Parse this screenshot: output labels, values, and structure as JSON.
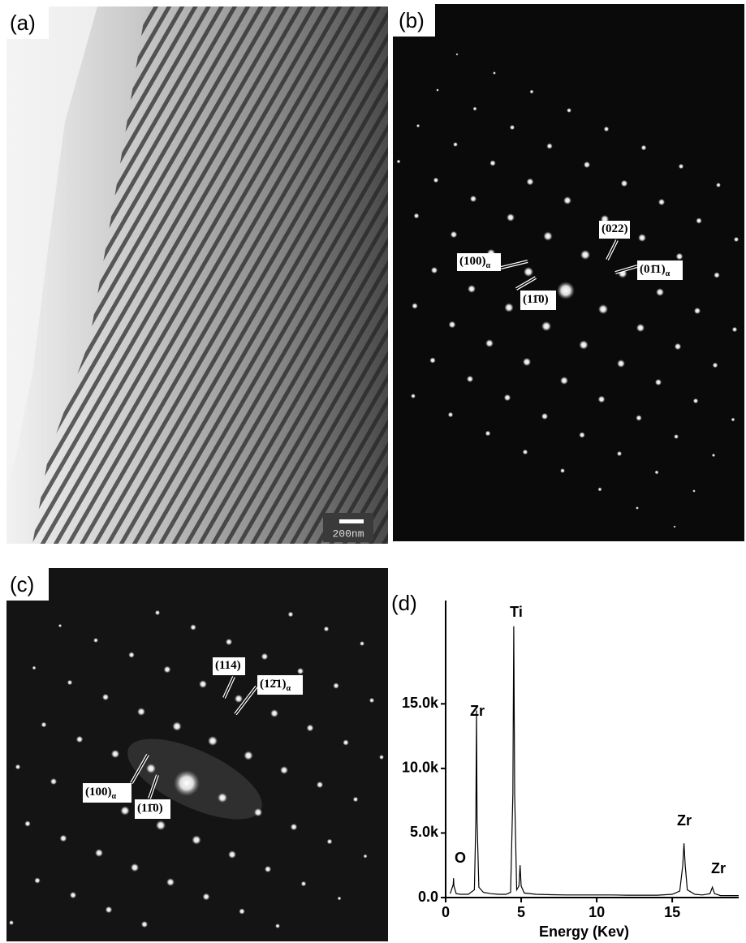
{
  "panels": [
    {
      "label": "(a)",
      "scale_bar": "200nm"
    },
    {
      "label": "(b)",
      "annotations": [
        {
          "text": "(022)"
        },
        {
          "text": "(100)",
          "sub": "α"
        },
        {
          "text": "(01̄1)",
          "sub": "α"
        },
        {
          "text": "(11̄0)"
        }
      ]
    },
    {
      "label": "(c)",
      "annotations": [
        {
          "text": "(114)"
        },
        {
          "text": "(12̄1)",
          "sub": "α"
        },
        {
          "text": "(100)",
          "sub": "α"
        },
        {
          "text": "(11̄0)"
        }
      ]
    }
  ],
  "chart_data": {
    "type": "line",
    "label": "(d)",
    "x_label": "Energy (Kev)",
    "color": "#000000",
    "x": [
      0.3,
      0.5,
      0.52,
      0.55,
      0.7,
      1.0,
      1.5,
      1.9,
      2.0,
      2.04,
      2.08,
      2.2,
      2.5,
      3.0,
      3.5,
      4.0,
      4.3,
      4.45,
      4.51,
      4.57,
      4.7,
      4.85,
      4.93,
      5.0,
      5.2,
      6,
      7,
      8,
      9,
      10,
      11,
      12,
      13,
      14,
      15,
      15.5,
      15.7,
      15.78,
      15.86,
      16.0,
      16.5,
      17,
      17.5,
      17.66,
      17.8,
      18.2,
      19,
      19.4
    ],
    "values": [
      300,
      1000,
      1500,
      900,
      300,
      250,
      250,
      600,
      6000,
      14500,
      6000,
      800,
      400,
      300,
      250,
      250,
      400,
      8000,
      21000,
      8000,
      600,
      900,
      2500,
      900,
      350,
      250,
      220,
      200,
      200,
      200,
      200,
      180,
      180,
      180,
      250,
      500,
      2500,
      4200,
      2500,
      600,
      250,
      200,
      300,
      800,
      300,
      150,
      150,
      150
    ],
    "xlim": [
      0,
      19.4
    ],
    "ylim": [
      0,
      23000
    ],
    "xticks": [
      0,
      5,
      10,
      15
    ],
    "yticks": [
      {
        "value": 0,
        "label": "0.0"
      },
      {
        "value": 5000,
        "label": "5.0k"
      },
      {
        "value": 10000,
        "label": "10.0k"
      },
      {
        "value": 15000,
        "label": "15.0k"
      }
    ],
    "annotations": [
      "O",
      "Zr",
      "Ti",
      "Zr",
      "Zr"
    ]
  }
}
